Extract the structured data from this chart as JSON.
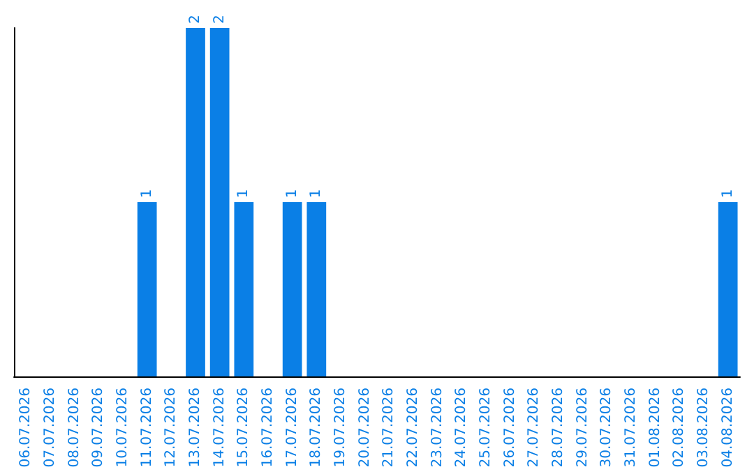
{
  "chart_data": {
    "type": "bar",
    "categories": [
      "06.07.2026",
      "07.07.2026",
      "08.07.2026",
      "09.07.2026",
      "10.07.2026",
      "11.07.2026",
      "12.07.2026",
      "13.07.2026",
      "14.07.2026",
      "15.07.2026",
      "16.07.2026",
      "17.07.2026",
      "18.07.2026",
      "19.07.2026",
      "20.07.2026",
      "21.07.2026",
      "22.07.2026",
      "23.07.2026",
      "24.07.2026",
      "25.07.2026",
      "26.07.2026",
      "27.07.2026",
      "28.07.2026",
      "29.07.2026",
      "30.07.2026",
      "31.07.2026",
      "01.08.2026",
      "02.08.2026",
      "03.08.2026",
      "04.08.2026"
    ],
    "values": [
      0,
      0,
      0,
      0,
      0,
      1,
      0,
      2,
      2,
      1,
      0,
      1,
      1,
      0,
      0,
      0,
      0,
      0,
      0,
      0,
      0,
      0,
      0,
      0,
      0,
      0,
      0,
      0,
      0,
      1
    ],
    "color": "#0a7fe6",
    "value_labels": [
      null,
      null,
      null,
      null,
      null,
      "1",
      null,
      "2",
      "2",
      "1",
      null,
      "1",
      "1",
      null,
      null,
      null,
      null,
      null,
      null,
      null,
      null,
      null,
      null,
      null,
      null,
      null,
      null,
      null,
      null,
      "1"
    ],
    "grid": false,
    "tick_labels": "x"
  }
}
